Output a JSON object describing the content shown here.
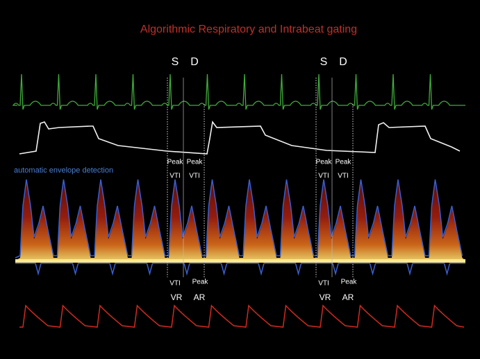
{
  "title": "Algorithmic Respiratory  and Intrabeat gating",
  "annotation": "automatic  envelope detection",
  "gates": [
    {
      "systolic": "S",
      "diastolic": "D",
      "s_peak": "Peak",
      "s_vti": "VTI",
      "d_peak": "Peak",
      "d_vti": "VTI",
      "vr_measure": "VTI",
      "ar_measure": "Peak",
      "vr": "VR",
      "ar": "AR"
    },
    {
      "systolic": "S",
      "diastolic": "D",
      "s_peak": "Peak",
      "s_vti": "VTI",
      "d_peak": "Peak",
      "d_vti": "VTI",
      "vr_measure": "VTI",
      "ar_measure": "Peak",
      "vr": "VR",
      "ar": "AR"
    }
  ]
}
